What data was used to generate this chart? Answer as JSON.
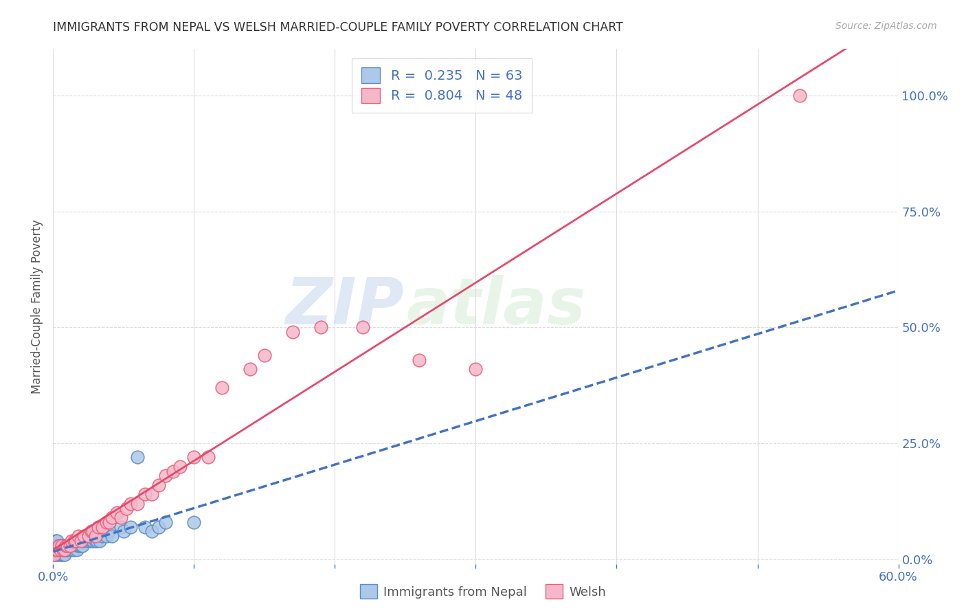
{
  "title": "IMMIGRANTS FROM NEPAL VS WELSH MARRIED-COUPLE FAMILY POVERTY CORRELATION CHART",
  "source": "Source: ZipAtlas.com",
  "ylabel": "Married-Couple Family Poverty",
  "xlim": [
    0.0,
    0.6
  ],
  "ylim": [
    -0.01,
    1.1
  ],
  "xticks": [
    0.0,
    0.1,
    0.2,
    0.3,
    0.4,
    0.5,
    0.6
  ],
  "xticklabels": [
    "0.0%",
    "",
    "",
    "",
    "",
    "",
    "60.0%"
  ],
  "yticks_right": [
    0.0,
    0.25,
    0.5,
    0.75,
    1.0
  ],
  "ytick_right_labels": [
    "0.0%",
    "25.0%",
    "50.0%",
    "75.0%",
    "100.0%"
  ],
  "nepal_R": 0.235,
  "nepal_N": 63,
  "welsh_R": 0.804,
  "welsh_N": 48,
  "nepal_color": "#adc8e8",
  "nepal_edge_color": "#5b8ec4",
  "nepal_line_color": "#4472c4",
  "welsh_color": "#f5b8cb",
  "welsh_edge_color": "#e8607a",
  "welsh_line_color": "#e8496a",
  "legend_label1": "Immigrants from Nepal",
  "legend_label2": "Welsh",
  "watermark_zip": "ZIP",
  "watermark_atlas": "atlas",
  "nepal_scatter_x": [
    0.001,
    0.001,
    0.001,
    0.002,
    0.002,
    0.002,
    0.002,
    0.003,
    0.003,
    0.003,
    0.003,
    0.004,
    0.004,
    0.004,
    0.005,
    0.005,
    0.005,
    0.006,
    0.006,
    0.006,
    0.007,
    0.007,
    0.007,
    0.008,
    0.008,
    0.008,
    0.009,
    0.009,
    0.01,
    0.01,
    0.011,
    0.012,
    0.012,
    0.013,
    0.014,
    0.015,
    0.015,
    0.016,
    0.017,
    0.018,
    0.019,
    0.02,
    0.021,
    0.022,
    0.025,
    0.027,
    0.028,
    0.03,
    0.031,
    0.033,
    0.035,
    0.038,
    0.04,
    0.042,
    0.048,
    0.05,
    0.055,
    0.06,
    0.065,
    0.07,
    0.075,
    0.08,
    0.1
  ],
  "nepal_scatter_y": [
    0.01,
    0.02,
    0.03,
    0.01,
    0.02,
    0.03,
    0.04,
    0.01,
    0.02,
    0.03,
    0.04,
    0.01,
    0.02,
    0.03,
    0.01,
    0.02,
    0.03,
    0.01,
    0.02,
    0.03,
    0.01,
    0.02,
    0.03,
    0.01,
    0.02,
    0.03,
    0.02,
    0.03,
    0.02,
    0.03,
    0.02,
    0.02,
    0.03,
    0.03,
    0.02,
    0.02,
    0.03,
    0.03,
    0.02,
    0.03,
    0.03,
    0.03,
    0.03,
    0.04,
    0.04,
    0.04,
    0.04,
    0.04,
    0.04,
    0.04,
    0.05,
    0.05,
    0.06,
    0.05,
    0.07,
    0.06,
    0.07,
    0.22,
    0.07,
    0.06,
    0.07,
    0.08,
    0.08
  ],
  "welsh_scatter_x": [
    0.001,
    0.002,
    0.003,
    0.004,
    0.005,
    0.006,
    0.007,
    0.008,
    0.009,
    0.01,
    0.012,
    0.013,
    0.015,
    0.016,
    0.018,
    0.02,
    0.022,
    0.025,
    0.027,
    0.028,
    0.03,
    0.032,
    0.035,
    0.038,
    0.04,
    0.042,
    0.045,
    0.048,
    0.052,
    0.055,
    0.06,
    0.065,
    0.07,
    0.075,
    0.08,
    0.085,
    0.09,
    0.1,
    0.11,
    0.12,
    0.14,
    0.15,
    0.17,
    0.19,
    0.22,
    0.26,
    0.3,
    0.53
  ],
  "welsh_scatter_y": [
    0.01,
    0.02,
    0.02,
    0.03,
    0.02,
    0.03,
    0.02,
    0.02,
    0.03,
    0.03,
    0.03,
    0.04,
    0.04,
    0.04,
    0.05,
    0.04,
    0.05,
    0.05,
    0.06,
    0.06,
    0.05,
    0.07,
    0.07,
    0.08,
    0.08,
    0.09,
    0.1,
    0.09,
    0.11,
    0.12,
    0.12,
    0.14,
    0.14,
    0.16,
    0.18,
    0.19,
    0.2,
    0.22,
    0.22,
    0.37,
    0.41,
    0.44,
    0.49,
    0.5,
    0.5,
    0.43,
    0.41,
    1.0
  ],
  "background_color": "#ffffff",
  "grid_color": "#dddddd",
  "title_color": "#333333",
  "axis_label_color": "#555555",
  "tick_color_blue": "#4472c4"
}
